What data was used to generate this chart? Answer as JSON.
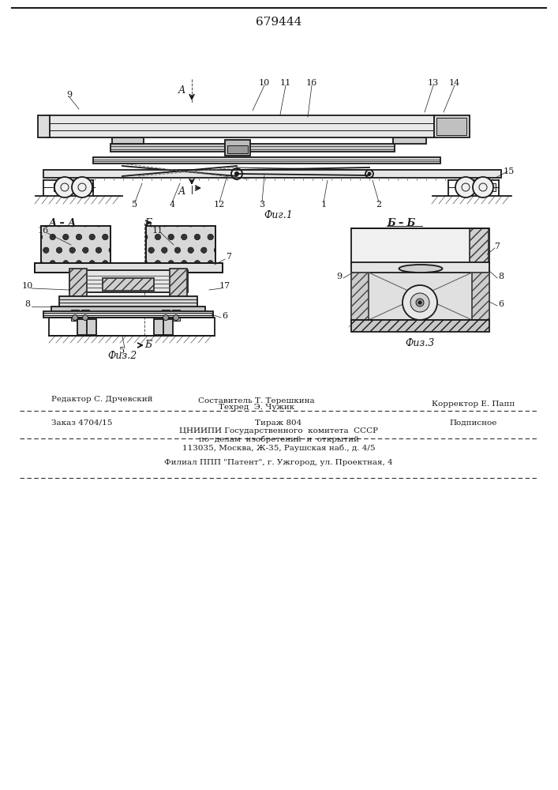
{
  "patent_number": "679444",
  "bg_color": "#ffffff",
  "line_color": "#1a1a1a",
  "fig1_caption": "Фиг.1",
  "fig2_caption": "Физ.2",
  "fig3_caption": "Физ.3",
  "section_aa": "А – А",
  "section_bb": "Б – Б",
  "footer_line1_left": "Редактор С. Дрчевский",
  "footer_line1_mid1": "Составитель Т. Терешкина",
  "footer_line1_mid2": "Техред  Э. Чужик",
  "footer_line1_right": "Корректор Е. Папп",
  "footer_line2_left": "Заказ 4704/15",
  "footer_line2_mid": "Тираж 804",
  "footer_line2_right": "Подписное",
  "footer_line3": "ЦНИИПИ Государственного  комитета  СССР",
  "footer_line4": "по  делам  изобретений  и  открытий",
  "footer_line5": "113035, Москва, Ж-35, Раушская наб., д. 4/5",
  "footer_line6": "Филиал ППП \"Патент\", г. Ужгород, ул. Проектная, 4"
}
